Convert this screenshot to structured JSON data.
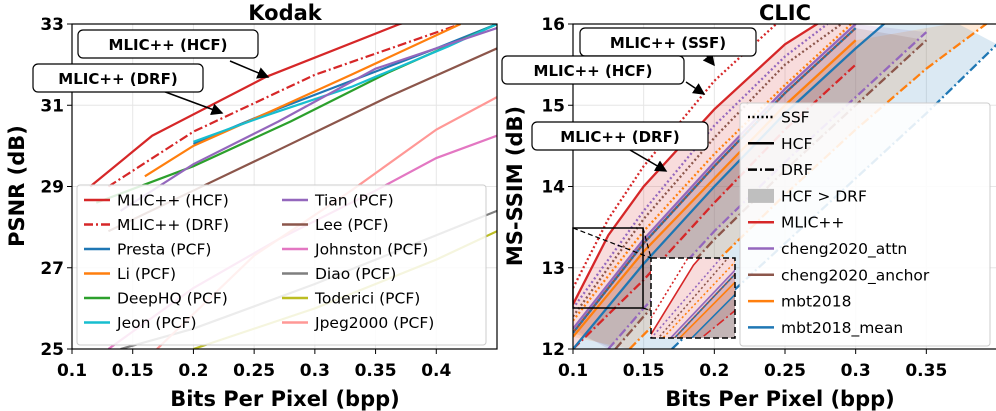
{
  "chart_data": [
    {
      "type": "line",
      "title": "Kodak",
      "xlabel": "Bits Per Pixel (bpp)",
      "ylabel": "PSNR (dB)",
      "xlim": [
        0.1,
        0.45
      ],
      "ylim": [
        25,
        33
      ],
      "xticks": [
        "0.1",
        "0.15",
        "0.2",
        "0.25",
        "0.3",
        "0.35",
        "0.4"
      ],
      "yticks": [
        "25",
        "27",
        "29",
        "31",
        "33"
      ],
      "grid": true,
      "legend_position": "lower-left",
      "series": [
        {
          "name": "MLIC++ (HCF)",
          "color": "#d62728",
          "style": "solid",
          "x": [
            0.115,
            0.166,
            0.26,
            0.37,
            0.45
          ],
          "y": [
            29.0,
            30.25,
            31.7,
            33.0,
            33.6
          ]
        },
        {
          "name": "MLIC++ (DRF)",
          "color": "#d62728",
          "style": "dashdot",
          "x": [
            0.13,
            0.2,
            0.3,
            0.42
          ],
          "y": [
            29.0,
            30.35,
            31.75,
            33.0
          ]
        },
        {
          "name": "Presta (PCF)",
          "color": "#1f77b4",
          "style": "solid",
          "x": [
            0.2,
            0.26,
            0.33,
            0.4,
            0.45
          ],
          "y": [
            30.05,
            30.8,
            31.6,
            32.4,
            33.0
          ]
        },
        {
          "name": "Li (PCF)",
          "color": "#ff7f0e",
          "style": "solid",
          "x": [
            0.16,
            0.2,
            0.26,
            0.33,
            0.42
          ],
          "y": [
            29.25,
            30.0,
            30.8,
            31.75,
            33.0
          ]
        },
        {
          "name": "DeepHQ (PCF)",
          "color": "#2ca02c",
          "style": "solid",
          "x": [
            0.12,
            0.2,
            0.28,
            0.36,
            0.45
          ],
          "y": [
            28.6,
            29.5,
            30.6,
            31.8,
            33.0
          ]
        },
        {
          "name": "Jeon (PCF)",
          "color": "#17becf",
          "style": "solid",
          "x": [
            0.2,
            0.26,
            0.33,
            0.41,
            0.45
          ],
          "y": [
            30.1,
            30.75,
            31.45,
            32.45,
            33.0
          ]
        },
        {
          "name": "Tian (PCF)",
          "color": "#9467bd",
          "style": "solid",
          "x": [
            0.14,
            0.2,
            0.27,
            0.35,
            0.45
          ],
          "y": [
            28.4,
            29.55,
            30.6,
            31.9,
            32.9
          ]
        },
        {
          "name": "Lee (PCF)",
          "color": "#8c564b",
          "style": "solid",
          "x": [
            0.13,
            0.2,
            0.27,
            0.36,
            0.45
          ],
          "y": [
            27.9,
            28.9,
            29.9,
            31.2,
            32.4
          ]
        },
        {
          "name": "Johnston (PCF)",
          "color": "#e377c2",
          "style": "solid",
          "x": [
            0.13,
            0.2,
            0.27,
            0.35,
            0.4,
            0.45
          ],
          "y": [
            25.0,
            26.5,
            27.7,
            28.9,
            29.7,
            30.25
          ]
        },
        {
          "name": "Diao (PCF)",
          "color": "#7f7f7f",
          "style": "solid",
          "x": [
            0.14,
            0.2,
            0.3,
            0.4,
            0.45
          ],
          "y": [
            25.0,
            25.5,
            26.6,
            27.8,
            28.4
          ]
        },
        {
          "name": "Toderici (PCF)",
          "color": "#bcbd22",
          "style": "solid",
          "x": [
            0.2,
            0.3,
            0.4,
            0.45
          ],
          "y": [
            25.0,
            26.0,
            27.2,
            27.9
          ]
        },
        {
          "name": "Jpeg2000 (PCF)",
          "color": "#ff9896",
          "style": "solid",
          "x": [
            0.17,
            0.25,
            0.33,
            0.4,
            0.45
          ],
          "y": [
            25.0,
            27.3,
            28.9,
            30.4,
            31.2
          ]
        }
      ],
      "annotations": [
        {
          "text": "MLIC++ (HCF)",
          "x": 0.26,
          "y": 31.7
        },
        {
          "text": "MLIC++ (DRF)",
          "x": 0.225,
          "y": 30.75
        }
      ]
    },
    {
      "type": "line",
      "title": "CLIC",
      "xlabel": "Bits Per Pixel (bpp)",
      "ylabel": "MS-SSIM (dB)",
      "xlim": [
        0.1,
        0.4
      ],
      "ylim": [
        12,
        16
      ],
      "xticks": [
        "0.1",
        "0.15",
        "0.2",
        "0.25",
        "0.3",
        "0.35"
      ],
      "yticks": [
        "12",
        "13",
        "14",
        "15",
        "16"
      ],
      "grid": true,
      "legend_position": "lower-right",
      "legend": [
        "SSF",
        "HCF",
        "DRF",
        "HCF > DRF",
        "MLIC++",
        "cheng2020_attn",
        "cheng2020_anchor",
        "mbt2018",
        "mbt2018_mean"
      ],
      "series": [
        {
          "name": "MLIC++",
          "color": "#d62728",
          "hcf": {
            "x": [
              0.1,
              0.125,
              0.15,
              0.2,
              0.25,
              0.3
            ],
            "y": [
              12.55,
              13.4,
              14.0,
              14.95,
              15.75,
              16.3
            ]
          },
          "drf": {
            "x": [
              0.1,
              0.15,
              0.2,
              0.25,
              0.3
            ],
            "y": [
              12.0,
              12.85,
              13.8,
              14.7,
              15.5
            ]
          },
          "ssf": {
            "x": [
              0.1,
              0.125,
              0.15,
              0.2,
              0.25
            ],
            "y": [
              12.75,
              13.6,
              14.25,
              15.3,
              16.1
            ]
          }
        },
        {
          "name": "cheng2020_attn",
          "color": "#9467bd",
          "hcf": {
            "x": [
              0.1,
              0.15,
              0.2,
              0.25,
              0.3
            ],
            "y": [
              12.25,
              13.35,
              14.3,
              15.2,
              16.0
            ]
          },
          "drf": {
            "x": [
              0.125,
              0.15,
              0.2,
              0.25,
              0.3,
              0.35
            ],
            "y": [
              12.0,
              12.5,
              13.45,
              14.3,
              15.1,
              15.9
            ]
          },
          "ssf": {
            "x": [
              0.1,
              0.15,
              0.2,
              0.25,
              0.28
            ],
            "y": [
              12.5,
              13.7,
              14.75,
              15.6,
              16.0
            ]
          }
        },
        {
          "name": "cheng2020_anchor",
          "color": "#8c564b",
          "hcf": {
            "x": [
              0.1,
              0.15,
              0.2,
              0.25,
              0.3
            ],
            "y": [
              12.2,
              13.3,
              14.25,
              15.15,
              15.95
            ]
          },
          "drf": {
            "x": [
              0.13,
              0.15,
              0.2,
              0.25,
              0.3,
              0.35
            ],
            "y": [
              12.0,
              12.4,
              13.35,
              14.2,
              15.0,
              15.8
            ]
          },
          "ssf": {
            "x": [
              0.1,
              0.15,
              0.2,
              0.25,
              0.29
            ],
            "y": [
              12.4,
              13.6,
              14.6,
              15.5,
              16.0
            ]
          }
        },
        {
          "name": "mbt2018",
          "color": "#ff7f0e",
          "hcf": {
            "x": [
              0.1,
              0.15,
              0.2,
              0.25,
              0.3
            ],
            "y": [
              12.15,
              13.2,
              14.1,
              15.0,
              15.8
            ]
          },
          "drf": {
            "x": [
              0.14,
              0.2,
              0.25,
              0.3,
              0.35,
              0.4
            ],
            "y": [
              12.0,
              13.05,
              13.9,
              14.7,
              15.45,
              16.1
            ]
          },
          "ssf": {
            "x": [
              0.1,
              0.15,
              0.2,
              0.25,
              0.3
            ],
            "y": [
              12.35,
              13.45,
              14.4,
              15.25,
              16.05
            ]
          }
        },
        {
          "name": "mbt2018_mean",
          "color": "#1f77b4",
          "hcf": {
            "x": [
              0.1,
              0.15,
              0.2,
              0.25,
              0.3,
              0.34
            ],
            "y": [
              12.0,
              13.05,
              14.0,
              14.9,
              15.7,
              16.3
            ]
          },
          "drf": {
            "x": [
              0.17,
              0.2,
              0.25,
              0.3,
              0.35,
              0.4
            ],
            "y": [
              12.0,
              12.5,
              13.3,
              14.1,
              14.9,
              15.75
            ]
          },
          "ssf": {
            "x": [
              0.1,
              0.15,
              0.2,
              0.25,
              0.3
            ],
            "y": [
              12.2,
              13.3,
              14.25,
              15.15,
              15.95
            ]
          }
        }
      ],
      "annotations": [
        {
          "text": "MLIC++ (SSF)",
          "x": 0.165,
          "y": 15.9
        },
        {
          "text": "MLIC++ (HCF)",
          "x": 0.16,
          "y": 15.45
        },
        {
          "text": "MLIC++ (DRF)",
          "x": 0.185,
          "y": 14.25
        }
      ]
    }
  ]
}
